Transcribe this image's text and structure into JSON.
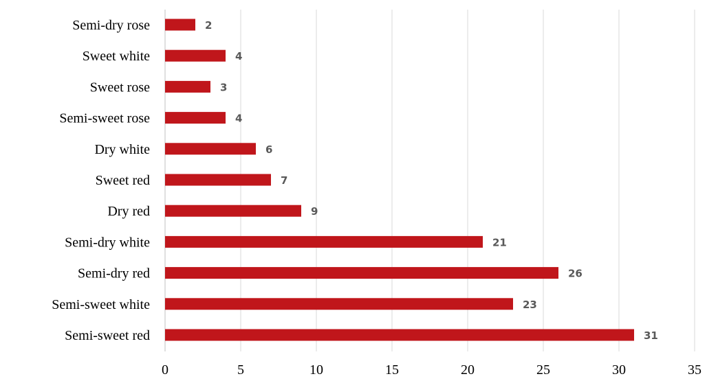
{
  "chart_data": {
    "type": "bar",
    "orientation": "horizontal",
    "categories": [
      "Semi-dry rose",
      "Sweet white",
      "Sweet rose",
      "Semi-sweet rose",
      "Dry white",
      "Sweet red",
      "Dry red",
      "Semi-dry white",
      "Semi-dry red",
      "Semi-sweet white",
      "Semi-sweet red"
    ],
    "values": [
      2,
      4,
      3,
      4,
      6,
      7,
      9,
      21,
      26,
      23,
      31
    ],
    "data_labels": [
      "2",
      "4",
      "3",
      "4",
      "6",
      "7",
      "9",
      "21",
      "26",
      "23",
      "31"
    ],
    "xticks": [
      "0",
      "5",
      "10",
      "15",
      "20",
      "25",
      "30",
      "35"
    ],
    "xlim": [
      0,
      35
    ],
    "title": "",
    "xlabel": "",
    "ylabel": "",
    "grid": "vertical",
    "legend": "none",
    "bar_color": "#c0161b"
  }
}
